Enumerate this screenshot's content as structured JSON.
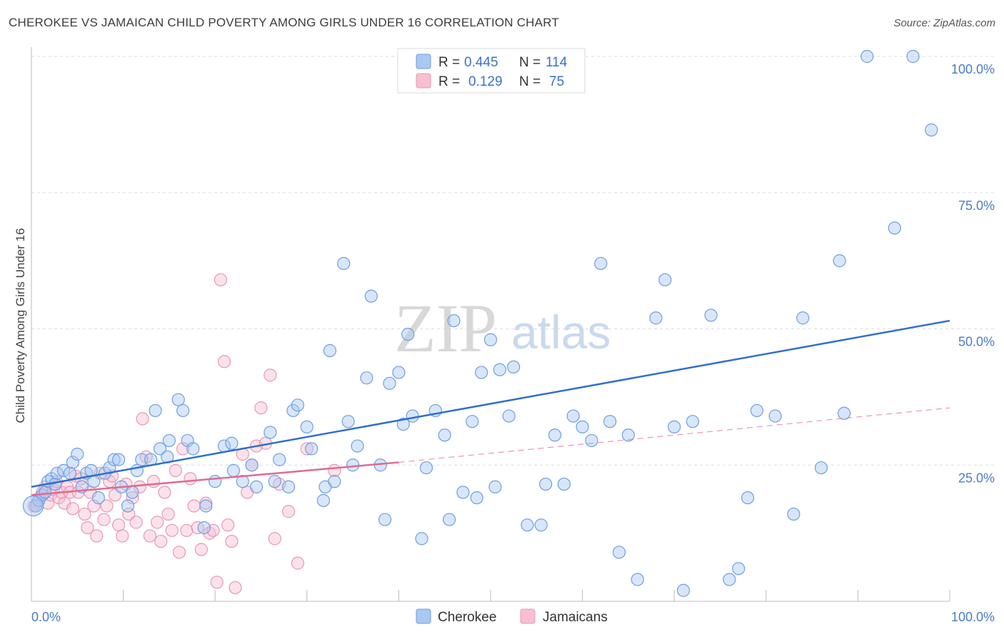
{
  "header": {
    "title": "CHEROKEE VS JAMAICAN CHILD POVERTY AMONG GIRLS UNDER 16 CORRELATION CHART",
    "source": "Source: ZipAtlas.com"
  },
  "watermark": {
    "zip": "ZIP",
    "atlas": "atlas"
  },
  "legend": {
    "rows": [
      {
        "r_label": "R =",
        "r_value": "0.445",
        "n_label": "N =",
        "n_value": "114"
      },
      {
        "r_label": "R =",
        "r_value": "0.129",
        "n_label": "N =",
        "n_value": "75"
      }
    ]
  },
  "bottom_legend": {
    "cherokee": "Cherokee",
    "jamaicans": "Jamaicans"
  },
  "colors": {
    "cherokee_fill": "#a9c8f2",
    "cherokee_stroke": "#6e9fe0",
    "cherokee_line": "#2f6fcf",
    "jamaicans_fill": "#f7bfd0",
    "jamaicans_stroke": "#e897b3",
    "jamaicans_line": "#e06a94",
    "tick_text": "#4a7cc9",
    "grid": "#dddddd"
  },
  "chart_data": {
    "type": "scatter",
    "title": "CHEROKEE VS JAMAICAN CHILD POVERTY AMONG GIRLS UNDER 16 CORRELATION CHART",
    "xlabel": "",
    "ylabel": "Child Poverty Among Girls Under 16",
    "xlim": [
      0,
      100
    ],
    "ylim": [
      0,
      100
    ],
    "x_tick_labels": [
      "0.0%",
      "100.0%"
    ],
    "y_tick_labels": [
      "25.0%",
      "50.0%",
      "75.0%",
      "100.0%"
    ],
    "y_ticks": [
      25,
      50,
      75,
      100
    ],
    "grid": "horizontal dashed",
    "legend_placement": "top-center",
    "series": [
      {
        "name": "Cherokee",
        "R": 0.445,
        "N": 114,
        "trend": {
          "x": [
            0,
            100
          ],
          "y": [
            21.0,
            51.5
          ],
          "style": "solid"
        },
        "points": [
          [
            0.5,
            17.5
          ],
          [
            0.8,
            18.5
          ],
          [
            1.2,
            19.5
          ],
          [
            1.5,
            20
          ],
          [
            1.8,
            22
          ],
          [
            2.2,
            22.5
          ],
          [
            2.6,
            21.5
          ],
          [
            2.8,
            23.5
          ],
          [
            3.5,
            24
          ],
          [
            4.2,
            23.5
          ],
          [
            4.5,
            25.5
          ],
          [
            5,
            27
          ],
          [
            5.5,
            21
          ],
          [
            6,
            23.5
          ],
          [
            6.5,
            24
          ],
          [
            6.8,
            22
          ],
          [
            7.3,
            19
          ],
          [
            8,
            23.5
          ],
          [
            8.5,
            24.5
          ],
          [
            9,
            26
          ],
          [
            9.5,
            26
          ],
          [
            9.8,
            21
          ],
          [
            10.5,
            17.5
          ],
          [
            11,
            20
          ],
          [
            11.5,
            24
          ],
          [
            12,
            26
          ],
          [
            13,
            26
          ],
          [
            13.5,
            35
          ],
          [
            14,
            28
          ],
          [
            14.8,
            26.5
          ],
          [
            15,
            29.5
          ],
          [
            16,
            37
          ],
          [
            16.5,
            35
          ],
          [
            17,
            29.5
          ],
          [
            17.6,
            28
          ],
          [
            18.8,
            13.5
          ],
          [
            19,
            17.5
          ],
          [
            20,
            22
          ],
          [
            21,
            28.5
          ],
          [
            21.8,
            29
          ],
          [
            22,
            24
          ],
          [
            23,
            22
          ],
          [
            24,
            25
          ],
          [
            24.5,
            21
          ],
          [
            26,
            31
          ],
          [
            26.5,
            22
          ],
          [
            27,
            26
          ],
          [
            28,
            21
          ],
          [
            28.5,
            35
          ],
          [
            29,
            36
          ],
          [
            30,
            32
          ],
          [
            30.5,
            28
          ],
          [
            31.8,
            18.5
          ],
          [
            32,
            21
          ],
          [
            32.5,
            46
          ],
          [
            33,
            22
          ],
          [
            34,
            62
          ],
          [
            34.5,
            33
          ],
          [
            35,
            25
          ],
          [
            35.5,
            28.5
          ],
          [
            36.5,
            41
          ],
          [
            37,
            56
          ],
          [
            38,
            25
          ],
          [
            38.5,
            15
          ],
          [
            39,
            40
          ],
          [
            40,
            42
          ],
          [
            40.5,
            32.5
          ],
          [
            41,
            49
          ],
          [
            41.5,
            34
          ],
          [
            42.5,
            11.5
          ],
          [
            43,
            24.5
          ],
          [
            44,
            35
          ],
          [
            45,
            30.5
          ],
          [
            45.5,
            15
          ],
          [
            46,
            51.5
          ],
          [
            47,
            20
          ],
          [
            48,
            33
          ],
          [
            48.5,
            19
          ],
          [
            49,
            42
          ],
          [
            50,
            48
          ],
          [
            50.5,
            21
          ],
          [
            51,
            42.5
          ],
          [
            52,
            34
          ],
          [
            52.5,
            43
          ],
          [
            54,
            14
          ],
          [
            55.5,
            14
          ],
          [
            56,
            21.5
          ],
          [
            57,
            30.5
          ],
          [
            58,
            21.5
          ],
          [
            59,
            34
          ],
          [
            60,
            32
          ],
          [
            61,
            29.5
          ],
          [
            62,
            62
          ],
          [
            63,
            33
          ],
          [
            64,
            9
          ],
          [
            65,
            30.5
          ],
          [
            66,
            4
          ],
          [
            68,
            52
          ],
          [
            69,
            59
          ],
          [
            70,
            32
          ],
          [
            71,
            2
          ],
          [
            72,
            33
          ],
          [
            74,
            52.5
          ],
          [
            76,
            4
          ],
          [
            77,
            6
          ],
          [
            78,
            19
          ],
          [
            79,
            35
          ],
          [
            81,
            34
          ],
          [
            83,
            16
          ],
          [
            84,
            52
          ],
          [
            86,
            24.5
          ],
          [
            88,
            62.5
          ],
          [
            88.5,
            34.5
          ],
          [
            91,
            100
          ],
          [
            94,
            68.5
          ],
          [
            96,
            100
          ],
          [
            98,
            86.5
          ]
        ]
      },
      {
        "name": "Jamaicans",
        "R": 0.129,
        "N": 75,
        "trend": {
          "x": [
            0,
            40
          ],
          "y": [
            19.5,
            25.5
          ],
          "style": "solid",
          "extended": {
            "x": [
              40,
              100
            ],
            "y": [
              25.5,
              35.5
            ],
            "style": "dashed"
          }
        },
        "points": [
          [
            0.3,
            17.5
          ],
          [
            0.6,
            18
          ],
          [
            0.9,
            19
          ],
          [
            1.2,
            20
          ],
          [
            1.5,
            21
          ],
          [
            1.8,
            18
          ],
          [
            2.1,
            19.5
          ],
          [
            2.4,
            20.5
          ],
          [
            2.7,
            22
          ],
          [
            3,
            19
          ],
          [
            3.3,
            20
          ],
          [
            3.6,
            18
          ],
          [
            3.9,
            21
          ],
          [
            4.2,
            20
          ],
          [
            4.5,
            17
          ],
          [
            4.8,
            23
          ],
          [
            5.1,
            20
          ],
          [
            5.4,
            22.5
          ],
          [
            5.8,
            16
          ],
          [
            6.1,
            13.5
          ],
          [
            6.4,
            20
          ],
          [
            6.8,
            17.5
          ],
          [
            7.1,
            12
          ],
          [
            7.5,
            23.5
          ],
          [
            7.9,
            15
          ],
          [
            8.2,
            17.5
          ],
          [
            8.5,
            22
          ],
          [
            8.8,
            23
          ],
          [
            9.1,
            19.5
          ],
          [
            9.5,
            14
          ],
          [
            9.9,
            12
          ],
          [
            10.3,
            21.5
          ],
          [
            10.6,
            16
          ],
          [
            11,
            19
          ],
          [
            11.4,
            14.5
          ],
          [
            11.8,
            21
          ],
          [
            12.1,
            33.5
          ],
          [
            12.5,
            26.5
          ],
          [
            12.9,
            12
          ],
          [
            13.3,
            22
          ],
          [
            13.7,
            14.5
          ],
          [
            14.1,
            11
          ],
          [
            14.5,
            20
          ],
          [
            14.9,
            16
          ],
          [
            15.3,
            13
          ],
          [
            15.7,
            24
          ],
          [
            16.1,
            9
          ],
          [
            16.5,
            28
          ],
          [
            16.9,
            13
          ],
          [
            17.3,
            22.5
          ],
          [
            17.7,
            17.5
          ],
          [
            18.1,
            13.5
          ],
          [
            18.5,
            9.5
          ],
          [
            19,
            18
          ],
          [
            19.4,
            12.5
          ],
          [
            19.8,
            13
          ],
          [
            20.2,
            3.5
          ],
          [
            20.6,
            59
          ],
          [
            21,
            44
          ],
          [
            21.4,
            14
          ],
          [
            21.8,
            11
          ],
          [
            22.2,
            2.5
          ],
          [
            23,
            27
          ],
          [
            23.5,
            20
          ],
          [
            24,
            25
          ],
          [
            24.5,
            28.5
          ],
          [
            25,
            35.5
          ],
          [
            25.5,
            29
          ],
          [
            26,
            41.5
          ],
          [
            26.5,
            11.5
          ],
          [
            27,
            21.5
          ],
          [
            28,
            16.5
          ],
          [
            29,
            7
          ],
          [
            30,
            28
          ],
          [
            33,
            24
          ]
        ]
      }
    ]
  }
}
